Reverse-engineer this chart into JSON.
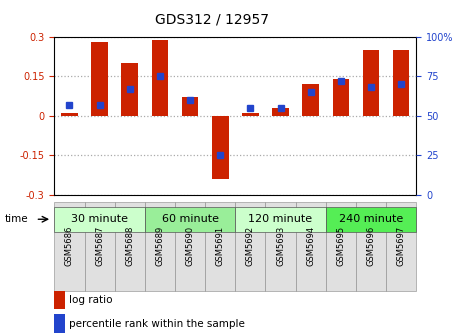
{
  "title": "GDS312 / 12957",
  "samples": [
    "GSM5686",
    "GSM5687",
    "GSM5688",
    "GSM5689",
    "GSM5690",
    "GSM5691",
    "GSM5692",
    "GSM5693",
    "GSM5694",
    "GSM5695",
    "GSM5696",
    "GSM5697"
  ],
  "log_ratio": [
    0.01,
    0.28,
    0.2,
    0.29,
    0.07,
    -0.24,
    0.01,
    0.03,
    0.12,
    0.14,
    0.25,
    0.25
  ],
  "percentile": [
    57,
    57,
    67,
    75,
    60,
    25,
    55,
    55,
    65,
    72,
    68,
    70
  ],
  "groups": [
    {
      "label": "30 minute",
      "start": 0,
      "end": 3,
      "color": "#ccffcc"
    },
    {
      "label": "60 minute",
      "start": 3,
      "end": 6,
      "color": "#99ee99"
    },
    {
      "label": "120 minute",
      "start": 6,
      "end": 9,
      "color": "#ccffcc"
    },
    {
      "label": "240 minute",
      "start": 9,
      "end": 12,
      "color": "#55ee55"
    }
  ],
  "ylim": [
    -0.3,
    0.3
  ],
  "yticks_left": [
    -0.3,
    -0.15,
    0.0,
    0.15,
    0.3
  ],
  "yticks_right": [
    0,
    25,
    50,
    75,
    100
  ],
  "bar_color": "#cc2200",
  "dot_color": "#2244cc",
  "background_color": "#ffffff",
  "grid_color": "#888888",
  "title_fontsize": 10,
  "tick_fontsize": 7,
  "sample_fontsize": 6,
  "group_fontsize": 8,
  "legend_fontsize": 7.5
}
